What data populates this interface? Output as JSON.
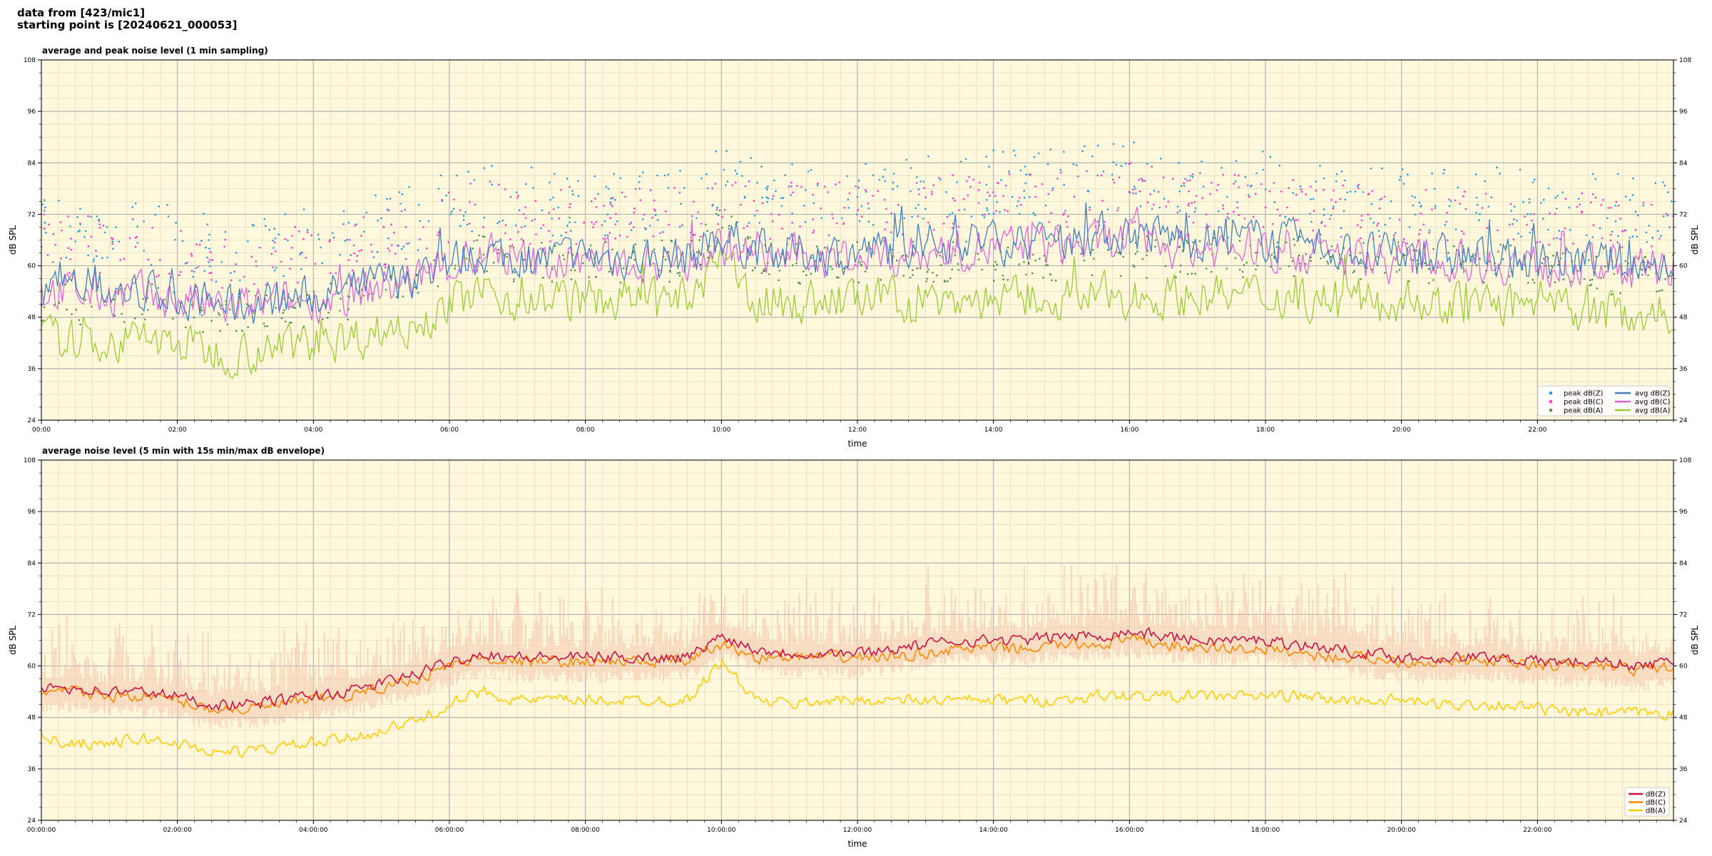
{
  "header": {
    "line1": "data from [423/mic1]",
    "line2": "starting point is [20240621_000053]"
  },
  "colors": {
    "background": "#fff8dc",
    "peak_z": "#1f9be0",
    "peak_c": "#ff33cc",
    "peak_a": "#4b8f4b",
    "avg_z": "#3f7fbf",
    "avg_c": "#dd66dd",
    "avg_a": "#99cc33",
    "env": "#f4bca4",
    "db_z": "#cc1144",
    "db_c": "#ff8800",
    "db_a": "#ffcc00"
  },
  "chart_data": [
    {
      "type": "line",
      "title": "average and peak noise level (1 min sampling)",
      "xlabel": "time",
      "ylabel": "dB SPL",
      "ylim": [
        24,
        108
      ],
      "yticks": [
        "24",
        "36",
        "48",
        "60",
        "72",
        "84",
        "96",
        "108"
      ],
      "xlim_hours": [
        0,
        24
      ],
      "xticks": [
        "00:00",
        "02:00",
        "04:00",
        "06:00",
        "08:00",
        "10:00",
        "12:00",
        "14:00",
        "16:00",
        "18:00",
        "20:00",
        "22:00"
      ],
      "grid": true,
      "legend_position": "bottom-right",
      "legend": [
        "peak dB(Z)",
        "peak dB(C)",
        "peak dB(A)",
        "avg dB(Z)",
        "avg dB(C)",
        "avg dB(A)"
      ],
      "x_hours": [
        0,
        0.5,
        1,
        1.5,
        2,
        2.5,
        3,
        3.5,
        4,
        4.5,
        5,
        5.5,
        6,
        6.5,
        7,
        7.5,
        8,
        8.5,
        9,
        9.5,
        10,
        10.5,
        11,
        11.5,
        12,
        12.5,
        13,
        13.5,
        14,
        14.5,
        15,
        15.5,
        16,
        16.5,
        17,
        17.5,
        18,
        18.5,
        19,
        19.5,
        20,
        20.5,
        21,
        21.5,
        22,
        22.5,
        23,
        23.5,
        24
      ],
      "series": [
        {
          "name": "avg dB(Z)",
          "values": [
            55,
            55,
            54,
            54,
            53,
            51,
            51,
            52,
            53,
            54,
            56,
            58,
            61,
            63,
            62,
            62,
            62,
            62,
            62,
            62,
            67,
            64,
            63,
            63,
            63,
            64,
            65,
            66,
            66,
            66,
            67,
            67,
            68,
            67,
            66,
            66,
            66,
            65,
            64,
            63,
            62,
            62,
            62,
            62,
            61,
            61,
            61,
            60,
            61
          ]
        },
        {
          "name": "avg dB(C)",
          "values": [
            54,
            54,
            53,
            53,
            52,
            50,
            50,
            51,
            52,
            53,
            55,
            57,
            60,
            62,
            61,
            61,
            61,
            61,
            61,
            61,
            65,
            62,
            62,
            62,
            62,
            62,
            63,
            64,
            64,
            64,
            65,
            65,
            66,
            65,
            64,
            64,
            64,
            63,
            62,
            62,
            61,
            61,
            61,
            61,
            60,
            60,
            60,
            59,
            60
          ]
        },
        {
          "name": "avg dB(A)",
          "values": [
            43,
            42,
            42,
            43,
            42,
            40,
            40,
            41,
            42,
            43,
            45,
            47,
            51,
            54,
            52,
            52,
            52,
            52,
            52,
            52,
            61,
            52,
            51,
            52,
            52,
            52,
            52,
            52,
            52,
            52,
            52,
            53,
            53,
            53,
            53,
            53,
            53,
            53,
            52,
            52,
            52,
            51,
            51,
            51,
            50,
            49,
            49,
            49,
            49
          ]
        }
      ]
    },
    {
      "type": "line",
      "title": "average noise level (5 min with 15s min/max dB envelope)",
      "xlabel": "time",
      "ylabel": "dB SPL",
      "ylim": [
        24,
        108
      ],
      "yticks": [
        "24",
        "36",
        "48",
        "60",
        "72",
        "84",
        "96",
        "108"
      ],
      "xlim_hours": [
        0,
        24
      ],
      "xticks": [
        "00:00:00",
        "02:00:00",
        "04:00:00",
        "06:00:00",
        "08:00:00",
        "10:00:00",
        "12:00:00",
        "14:00:00",
        "16:00:00",
        "18:00:00",
        "20:00:00",
        "22:00:00"
      ],
      "grid": true,
      "legend_position": "bottom-right",
      "legend": [
        "dB(Z)",
        "dB(C)",
        "dB(A)"
      ],
      "x_hours": [
        0,
        0.5,
        1,
        1.5,
        2,
        2.5,
        3,
        3.5,
        4,
        4.5,
        5,
        5.5,
        6,
        6.5,
        7,
        7.5,
        8,
        8.5,
        9,
        9.5,
        10,
        10.5,
        11,
        11.5,
        12,
        12.5,
        13,
        13.5,
        14,
        14.5,
        15,
        15.5,
        16,
        16.5,
        17,
        17.5,
        18,
        18.5,
        19,
        19.5,
        20,
        20.5,
        21,
        21.5,
        22,
        22.5,
        23,
        23.5,
        24
      ],
      "series": [
        {
          "name": "dB(Z)",
          "values": [
            55,
            55,
            54,
            54,
            53,
            51,
            51,
            52,
            53,
            54,
            56,
            58,
            61,
            63,
            62,
            62,
            62,
            62,
            62,
            62,
            67,
            64,
            63,
            63,
            63,
            64,
            65,
            66,
            66,
            66,
            67,
            67,
            68,
            67,
            66,
            66,
            66,
            65,
            64,
            63,
            62,
            62,
            62,
            62,
            61,
            61,
            61,
            60,
            61
          ]
        },
        {
          "name": "dB(C)",
          "values": [
            54,
            54,
            53,
            53,
            52,
            50,
            50,
            51,
            52,
            53,
            55,
            57,
            60,
            62,
            61,
            61,
            61,
            61,
            61,
            61,
            65,
            62,
            62,
            62,
            62,
            62,
            63,
            64,
            64,
            64,
            65,
            65,
            66,
            65,
            64,
            64,
            64,
            63,
            62,
            62,
            61,
            61,
            61,
            61,
            60,
            60,
            60,
            59,
            60
          ]
        },
        {
          "name": "dB(A)",
          "values": [
            43,
            42,
            42,
            43,
            42,
            40,
            40,
            41,
            42,
            43,
            45,
            47,
            51,
            54,
            52,
            52,
            52,
            52,
            52,
            52,
            61,
            52,
            51,
            52,
            52,
            52,
            52,
            52,
            52,
            52,
            52,
            53,
            53,
            53,
            53,
            53,
            53,
            53,
            52,
            52,
            52,
            51,
            51,
            51,
            50,
            49,
            49,
            49,
            49
          ]
        }
      ]
    }
  ]
}
